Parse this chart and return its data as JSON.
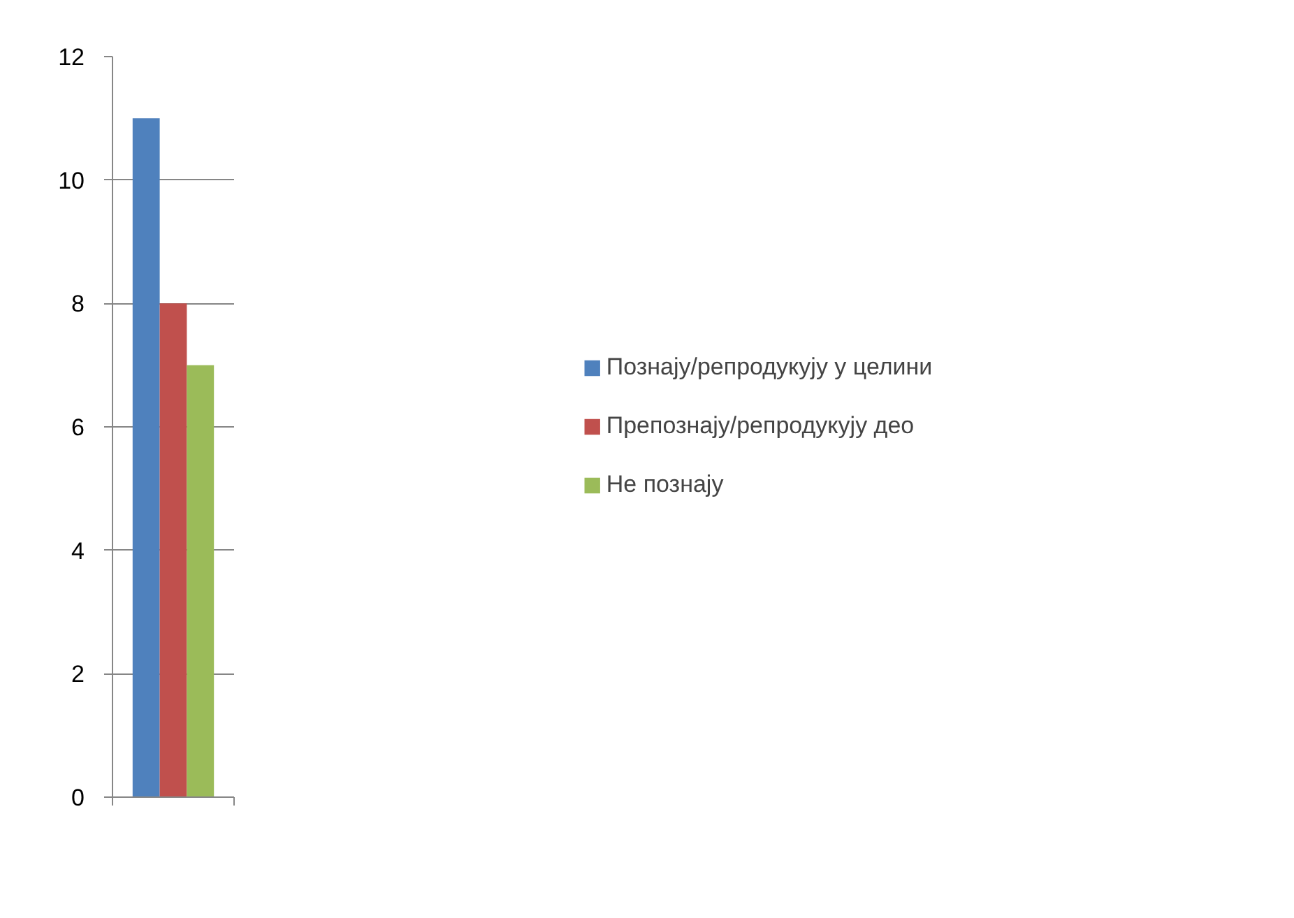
{
  "chart_data": {
    "type": "bar",
    "categories": [
      null
    ],
    "series": [
      {
        "name": "Познају/репродукују у целини",
        "color": "#4f81bd",
        "values": [
          11
        ]
      },
      {
        "name": "Препознају/репродукују део",
        "color": "#c0504d",
        "values": [
          8
        ]
      },
      {
        "name": "Не познају",
        "color": "#9bbb59",
        "values": [
          7
        ]
      }
    ],
    "ylim": [
      0,
      12
    ],
    "yticks": [
      0,
      2,
      4,
      6,
      8,
      10,
      12
    ],
    "grid": "y",
    "legend": "right",
    "tick_labels": "y"
  }
}
